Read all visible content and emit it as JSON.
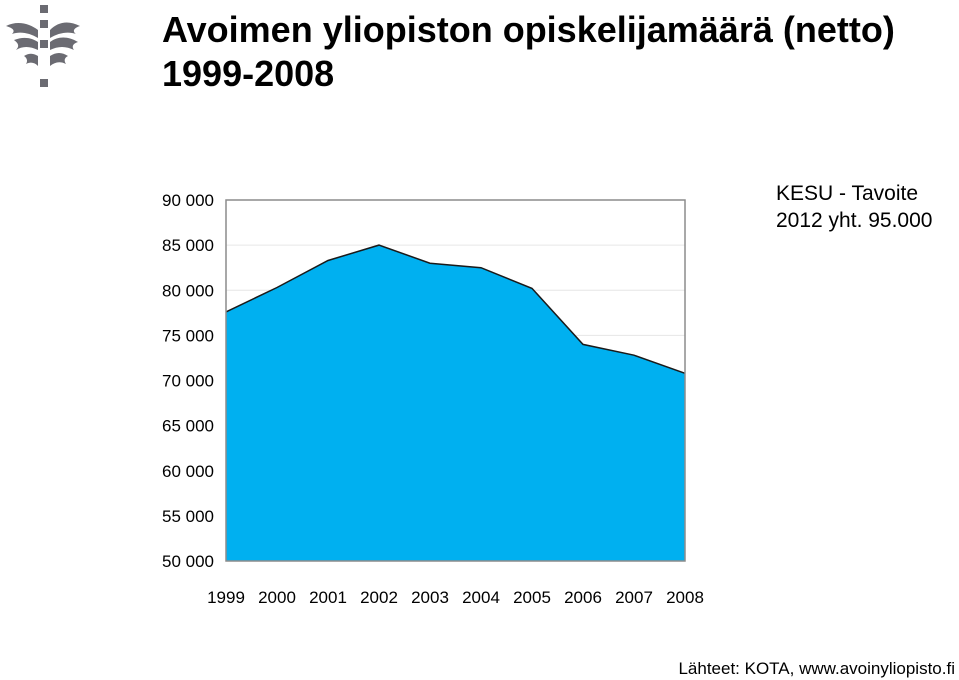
{
  "title": {
    "line1": "Avoimen yliopiston opiskelijamäärä (netto)",
    "line2": "1999-2008"
  },
  "logo": {
    "icon": "flame-torch-logo-icon",
    "color": "#6b6b72"
  },
  "annotation": {
    "line1": "KESU - Tavoite",
    "line2": "2012 yht. 95.000"
  },
  "source": "Lähteet: KOTA, www.avoinyliopisto.fi",
  "chart_data": {
    "type": "area",
    "categories": [
      "1999",
      "2000",
      "2001",
      "2002",
      "2003",
      "2004",
      "2005",
      "2006",
      "2007",
      "2008"
    ],
    "values": [
      77600,
      80300,
      83300,
      85000,
      83000,
      82500,
      80200,
      74000,
      72800,
      70800
    ],
    "ylim": [
      50000,
      90000
    ],
    "yticks": [
      50000,
      55000,
      60000,
      65000,
      70000,
      75000,
      80000,
      85000,
      90000
    ],
    "ytick_labels": [
      "50 000",
      "55 000",
      "60 000",
      "65 000",
      "70 000",
      "75 000",
      "80 000",
      "85 000",
      "90 000"
    ],
    "grid": true,
    "fill_color": "#00b0f0",
    "line_color": "#1a1a1a",
    "grid_color": "#e6e6e6",
    "frame_color": "#8c8c8c"
  }
}
